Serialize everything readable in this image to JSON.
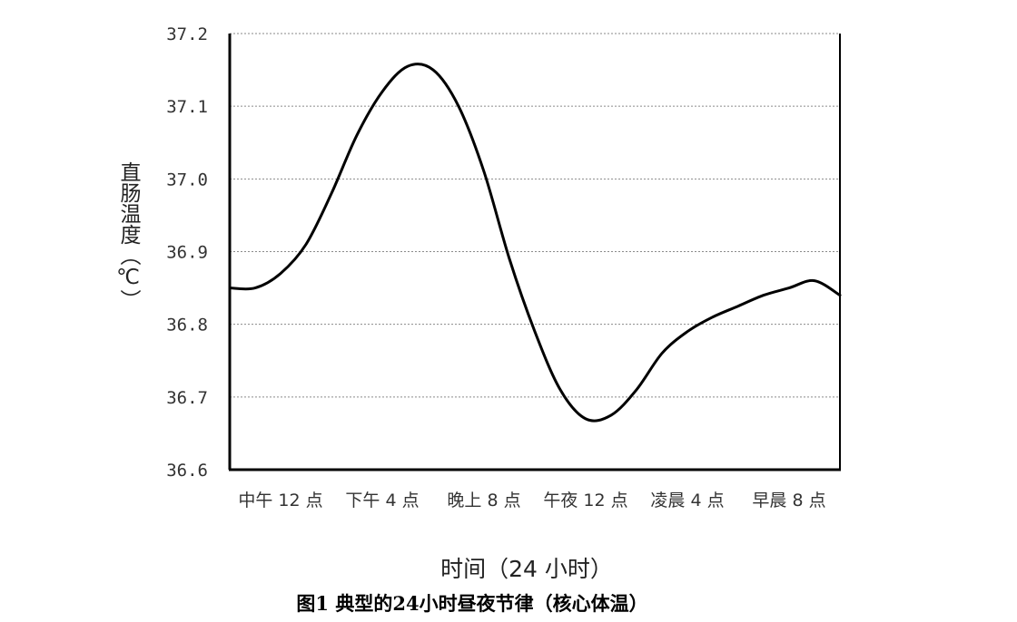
{
  "chart_data": {
    "type": "line",
    "title": "",
    "xlabel": "时间（24 小时）",
    "ylabel": "直肠温度（℃）",
    "ylim": [
      36.6,
      37.2
    ],
    "yticks": [
      "36.6",
      "36.7",
      "36.8",
      "36.9",
      "37.0",
      "37.1",
      "37.2"
    ],
    "categories": [
      "中午 12 点",
      "下午 4 点",
      "晚上 8 点",
      "午夜 12 点",
      "凌晨 4 点",
      "早晨 8 点"
    ],
    "grid": "horizontal dotted",
    "series": [
      {
        "color": "#000000",
        "x": [
          0,
          1,
          2,
          3,
          4,
          5,
          6,
          7,
          8,
          9,
          10,
          11,
          12,
          13,
          14,
          15,
          16,
          17,
          18,
          19,
          20,
          21,
          22,
          23,
          24
        ],
        "y": [
          36.85,
          36.85,
          36.87,
          36.91,
          36.98,
          37.06,
          37.12,
          37.155,
          37.15,
          37.1,
          37.01,
          36.89,
          36.79,
          36.71,
          36.67,
          36.675,
          36.71,
          36.76,
          36.79,
          36.81,
          36.825,
          36.84,
          36.85,
          36.86,
          36.84
        ]
      }
    ]
  },
  "caption": "图1 典型的24小时昼夜节律（核心体温）"
}
